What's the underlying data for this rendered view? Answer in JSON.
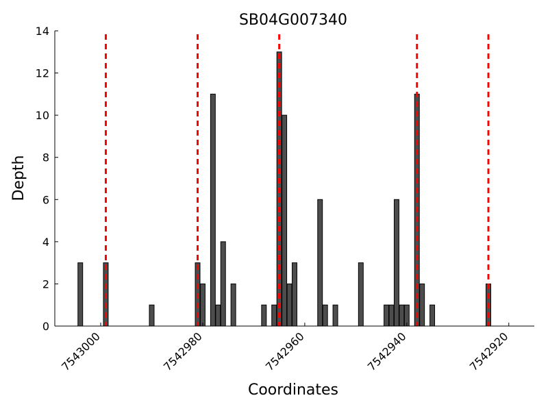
{
  "chart_data": {
    "type": "bar",
    "title": "SB04G007340",
    "xlabel": "Coordinates",
    "ylabel": "Depth",
    "x_axis_reversed": true,
    "xlim": [
      7543009,
      7542915
    ],
    "ylim": [
      0,
      14
    ],
    "yticks": [
      0,
      2,
      4,
      6,
      8,
      10,
      12,
      14
    ],
    "xticks": [
      7543000,
      7542980,
      7542960,
      7542940,
      7542920
    ],
    "grid": false,
    "bar_color": "#4d4d4d",
    "marker_color": "#ff0000",
    "bars": [
      {
        "x": 7543004,
        "y": 3
      },
      {
        "x": 7542999,
        "y": 3
      },
      {
        "x": 7542990,
        "y": 1
      },
      {
        "x": 7542981,
        "y": 3
      },
      {
        "x": 7542980,
        "y": 2
      },
      {
        "x": 7542978,
        "y": 11
      },
      {
        "x": 7542977,
        "y": 1
      },
      {
        "x": 7542976,
        "y": 4
      },
      {
        "x": 7542974,
        "y": 2
      },
      {
        "x": 7542968,
        "y": 1
      },
      {
        "x": 7542966,
        "y": 1
      },
      {
        "x": 7542965,
        "y": 13
      },
      {
        "x": 7542964,
        "y": 10
      },
      {
        "x": 7542963,
        "y": 2
      },
      {
        "x": 7542962,
        "y": 3
      },
      {
        "x": 7542957,
        "y": 6
      },
      {
        "x": 7542956,
        "y": 1
      },
      {
        "x": 7542954,
        "y": 1
      },
      {
        "x": 7542949,
        "y": 3
      },
      {
        "x": 7542944,
        "y": 1
      },
      {
        "x": 7542943,
        "y": 1
      },
      {
        "x": 7542942,
        "y": 6
      },
      {
        "x": 7542941,
        "y": 1
      },
      {
        "x": 7542940,
        "y": 1
      },
      {
        "x": 7542938,
        "y": 11
      },
      {
        "x": 7542937,
        "y": 2
      },
      {
        "x": 7542935,
        "y": 1
      },
      {
        "x": 7542924,
        "y": 2
      }
    ],
    "marker_lines": [
      7542999,
      7542981,
      7542965,
      7542938,
      7542924
    ]
  }
}
